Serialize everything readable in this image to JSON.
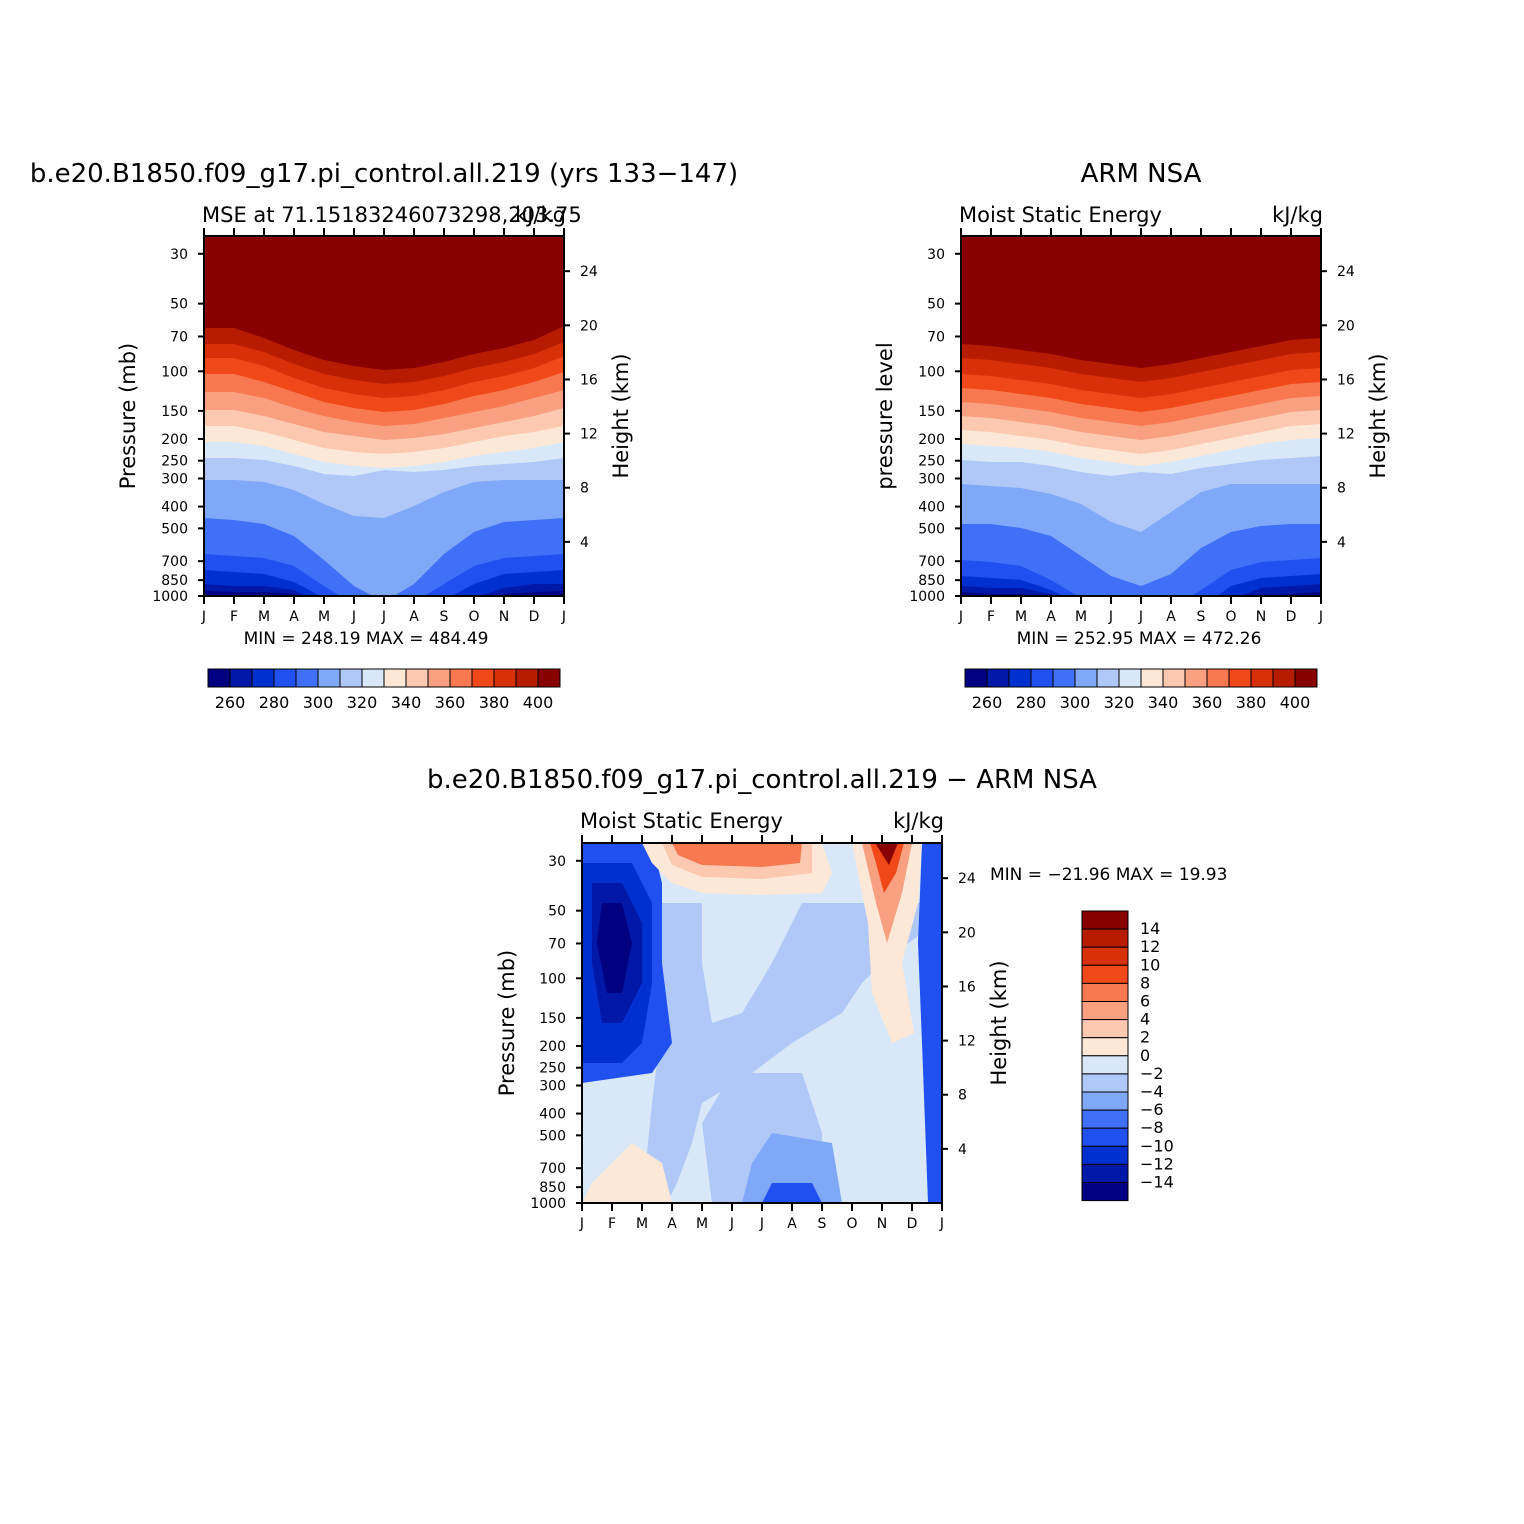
{
  "figure": {
    "pressure_ticks": [
      "30",
      "50",
      "70",
      "100",
      "150",
      "200",
      "250",
      "300",
      "400",
      "500",
      "700",
      "850",
      "1000"
    ],
    "pressure_values": [
      30,
      50,
      70,
      100,
      150,
      200,
      250,
      300,
      400,
      500,
      700,
      850,
      1000
    ],
    "height_ticks": [
      "24",
      "20",
      "16",
      "12",
      "8",
      "4"
    ],
    "height_values_km": [
      24,
      20,
      16,
      12,
      8,
      4
    ],
    "month_ticks": [
      "J",
      "F",
      "M",
      "A",
      "M",
      "J",
      "J",
      "A",
      "S",
      "O",
      "N",
      "D",
      "J"
    ]
  },
  "chart_data": [
    {
      "type": "heatmap",
      "id": "model",
      "title": "b.e20.B1850.f09_g17.pi_control.all.219 (yrs 133−147)",
      "subtitle_left": "MSE at 71.15183246073298,203.75",
      "subtitle_right": "kJ/kg",
      "ylabel": "Pressure (mb)",
      "ylabel_right": "Height (km)",
      "stats": "MIN = 248.19 MAX = 484.49",
      "contour_levels": [
        260,
        270,
        280,
        290,
        300,
        310,
        320,
        330,
        340,
        350,
        360,
        370,
        380,
        390,
        400
      ],
      "colorbar_tick_labels": [
        "260",
        "280",
        "300",
        "320",
        "340",
        "360",
        "380",
        "400"
      ],
      "min": 248.19,
      "max": 484.49
    },
    {
      "type": "heatmap",
      "id": "obs",
      "title": "ARM NSA",
      "subtitle_left": "Moist Static Energy",
      "subtitle_right": "kJ/kg",
      "ylabel": "pressure level",
      "ylabel_right": "Height (km)",
      "stats": "MIN = 252.95 MAX = 472.26",
      "contour_levels": [
        260,
        270,
        280,
        290,
        300,
        310,
        320,
        330,
        340,
        350,
        360,
        370,
        380,
        390,
        400
      ],
      "colorbar_tick_labels": [
        "260",
        "280",
        "300",
        "320",
        "340",
        "360",
        "380",
        "400"
      ],
      "min": 252.95,
      "max": 472.26
    },
    {
      "type": "heatmap",
      "id": "diff",
      "title": "b.e20.B1850.f09_g17.pi_control.all.219 − ARM NSA",
      "subtitle_left": "Moist Static Energy",
      "subtitle_right": "kJ/kg",
      "ylabel": "Pressure (mb)",
      "ylabel_right": "Height (km)",
      "stats": "MIN = −21.96 MAX =  19.93",
      "contour_levels": [
        -14,
        -12,
        -10,
        -8,
        -6,
        -4,
        -2,
        0,
        2,
        4,
        6,
        8,
        10,
        12,
        14
      ],
      "colorbar_tick_labels": [
        "14",
        "12",
        "10",
        "8",
        "6",
        "4",
        "2",
        "0",
        "−2",
        "−4",
        "−6",
        "−8",
        "−10",
        "−12",
        "−14"
      ],
      "min": -21.96,
      "max": 19.93
    }
  ],
  "colors": {
    "levels16": [
      "#000080",
      "#0018a8",
      "#0030d0",
      "#2050f0",
      "#4070f8",
      "#80a8f8",
      "#b0c8f8",
      "#d8e8f8",
      "#fde8d8",
      "#fcc8b0",
      "#f8a080",
      "#f87850",
      "#f04818",
      "#d83008",
      "#b81c00",
      "#880000"
    ]
  }
}
